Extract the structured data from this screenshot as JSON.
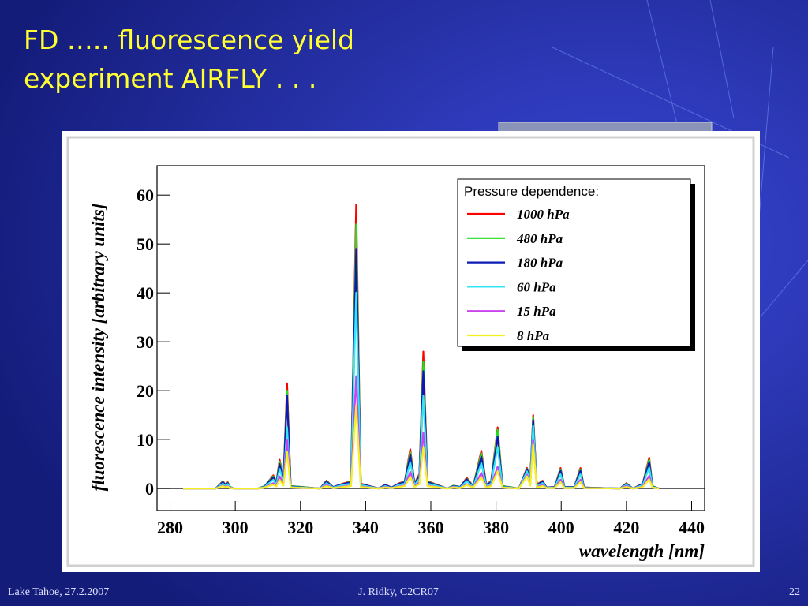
{
  "slide": {
    "title_lines": [
      "FD ….. fluorescence yield",
      "experiment AIRFLY . . ."
    ]
  },
  "footer": {
    "left": "Lake Tahoe, 27.2.2007",
    "center": "J. Ridky, C2CR07",
    "right": "22"
  },
  "chart_data": {
    "type": "line",
    "x_label": "wavelength [nm]",
    "y_label": "fluorescence intensity [arbitrary units]",
    "legend_title": "Pressure dependence:",
    "legend": "upper right",
    "x": [
      284,
      294,
      296.2,
      297,
      297.7,
      298.3,
      299.5,
      307,
      309,
      311.7,
      312.6,
      313.6,
      314.8,
      315.9,
      317,
      326,
      328,
      330,
      333,
      335.5,
      337.1,
      338.5,
      344,
      346,
      348,
      350,
      352,
      353.7,
      355,
      356.5,
      357.7,
      359,
      365,
      367,
      369,
      371,
      373,
      375.5,
      377,
      378.5,
      380.5,
      382,
      387,
      389.5,
      390.5,
      391.4,
      392.5,
      394.3,
      395.5,
      398,
      399.8,
      401,
      404,
      405.9,
      407,
      418,
      420,
      422,
      425,
      427,
      428,
      430
    ],
    "series": [
      {
        "name": "1000 hPa",
        "color": "#ff0000",
        "values": [
          0,
          0,
          1.5,
          0.8,
          1.3,
          0.4,
          0,
          0,
          0.5,
          2.7,
          1.2,
          5.9,
          2,
          21.5,
          0.5,
          0,
          1.6,
          0.3,
          1,
          1.5,
          58,
          1,
          0,
          0.8,
          0.2,
          1,
          1.5,
          8,
          1,
          3,
          28,
          1.5,
          0,
          0.6,
          0.3,
          2.2,
          0.5,
          7.7,
          0.8,
          1.5,
          12.5,
          0.5,
          0,
          4.2,
          2,
          15,
          0.8,
          1.6,
          0.2,
          0.3,
          4.2,
          0.3,
          0.3,
          4.2,
          0.2,
          0,
          1.1,
          0,
          1,
          6.3,
          0.5,
          0
        ]
      },
      {
        "name": "480 hPa",
        "color": "#22dd22",
        "values": [
          0,
          0,
          1.4,
          0.7,
          1.2,
          0.4,
          0,
          0,
          0.5,
          2.5,
          1.1,
          5.5,
          1.9,
          20,
          0.5,
          0,
          1.5,
          0.3,
          0.9,
          1.4,
          54,
          0.9,
          0,
          0.7,
          0.2,
          0.9,
          1.4,
          7.4,
          0.9,
          2.8,
          26,
          1.4,
          0,
          0.6,
          0.3,
          2,
          0.5,
          7.2,
          0.7,
          1.4,
          12,
          0.5,
          0,
          4,
          1.9,
          14.6,
          0.7,
          1.5,
          0.2,
          0.3,
          3.9,
          0.3,
          0.3,
          3.9,
          0.2,
          0,
          1,
          0,
          0.9,
          5.9,
          0.5,
          0
        ]
      },
      {
        "name": "180 hPa",
        "color": "#0a1ab4",
        "values": [
          0,
          0,
          1.3,
          0.7,
          1.1,
          0.3,
          0,
          0,
          0.4,
          2.3,
          1,
          5,
          1.7,
          19,
          0.4,
          0,
          1.4,
          0.3,
          0.9,
          1.3,
          49,
          0.9,
          0,
          0.7,
          0.2,
          0.9,
          1.3,
          6.8,
          0.9,
          2.6,
          24,
          1.3,
          0,
          0.5,
          0.3,
          1.9,
          0.4,
          6.5,
          0.7,
          1.3,
          10.6,
          0.4,
          0,
          3.9,
          1.8,
          14,
          0.7,
          1.4,
          0.2,
          0.3,
          3.6,
          0.3,
          0.3,
          3.6,
          0.2,
          0,
          0.9,
          0,
          0.9,
          5.4,
          0.4,
          0
        ]
      },
      {
        "name": "60 hPa",
        "color": "#33e5f5",
        "values": [
          0,
          0,
          1,
          0.5,
          0.9,
          0.3,
          0,
          0,
          0.3,
          1.8,
          0.8,
          4,
          1.4,
          12.5,
          0.3,
          0,
          1.1,
          0.2,
          0.7,
          1,
          40,
          0.7,
          0,
          0.5,
          0.1,
          0.7,
          1,
          5.4,
          0.7,
          2,
          19,
          1,
          0,
          0.4,
          0.2,
          1.5,
          0.3,
          5.2,
          0.5,
          1,
          8.5,
          0.3,
          0,
          3.5,
          1.4,
          12.8,
          0.5,
          1.1,
          0.1,
          0.2,
          2.9,
          0.2,
          0.2,
          2.9,
          0.1,
          0,
          0.7,
          0,
          0.7,
          4.3,
          0.3,
          0
        ]
      },
      {
        "name": "15 hPa",
        "color": "#cc44ee",
        "values": [
          0,
          0,
          0.6,
          0.3,
          0.5,
          0.2,
          0,
          0,
          0.2,
          1.1,
          0.5,
          2.5,
          0.8,
          10,
          0.2,
          0,
          0.7,
          0.1,
          0.4,
          0.6,
          23,
          0.4,
          0,
          0.3,
          0.1,
          0.4,
          0.6,
          3.4,
          0.4,
          1.3,
          11.5,
          0.6,
          0,
          0.3,
          0.1,
          0.9,
          0.2,
          3.2,
          0.3,
          0.6,
          4.5,
          0.2,
          0,
          2.8,
          0.8,
          10,
          0.3,
          0.7,
          0.1,
          0.1,
          1.8,
          0.1,
          0.1,
          1.8,
          0.1,
          0,
          0.5,
          0,
          0.4,
          2.6,
          0.2,
          0
        ]
      },
      {
        "name": "8 hPa",
        "color": "#f5f020",
        "values": [
          0,
          0,
          0.5,
          0.2,
          0.4,
          0.1,
          0,
          0,
          0.2,
          0.8,
          0.4,
          1.8,
          0.6,
          7.5,
          0.2,
          0,
          0.5,
          0.1,
          0.3,
          0.5,
          17,
          0.3,
          0,
          0.2,
          0.1,
          0.3,
          0.5,
          2.4,
          0.3,
          0.9,
          8.5,
          0.5,
          0,
          0.2,
          0.1,
          0.7,
          0.2,
          2.3,
          0.2,
          0.5,
          3.5,
          0.2,
          0,
          2.5,
          0.6,
          9,
          0.2,
          0.5,
          0.1,
          0.1,
          1.3,
          0.1,
          0.1,
          1.3,
          0.1,
          0,
          0.3,
          0,
          0.3,
          1.9,
          0.2,
          0
        ]
      }
    ],
    "xlim": [
      276,
      444
    ],
    "ylim": [
      -4.5,
      66
    ],
    "xticks": [
      280,
      300,
      320,
      340,
      360,
      380,
      400,
      420,
      440
    ],
    "yticks": [
      0,
      10,
      20,
      30,
      40,
      50,
      60
    ]
  }
}
